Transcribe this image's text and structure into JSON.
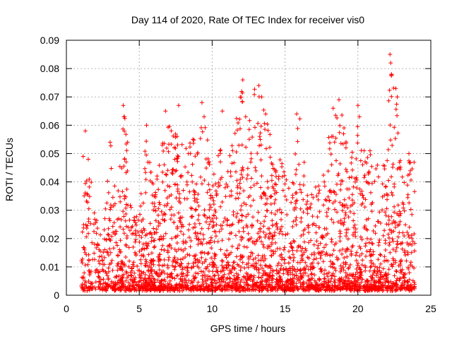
{
  "chart_data": {
    "type": "scatter",
    "title": "Day 114 of 2020, Rate Of TEC Index for receiver vis0",
    "xlabel": "GPS time / hours",
    "ylabel": "ROTI / TECUs",
    "xlim": [
      0,
      25
    ],
    "ylim": [
      0,
      0.09
    ],
    "xticks": [
      "0",
      "5",
      "10",
      "15",
      "20",
      "25"
    ],
    "yticks": [
      "0",
      "0.01",
      "0.02",
      "0.03",
      "0.04",
      "0.05",
      "0.06",
      "0.07",
      "0.08",
      "0.09"
    ],
    "xtick_values": [
      0,
      5,
      10,
      15,
      20,
      25
    ],
    "ytick_values": [
      0,
      0.01,
      0.02,
      0.03,
      0.04,
      0.05,
      0.06,
      0.07,
      0.08,
      0.09
    ],
    "grid": true,
    "marker": "+",
    "color": "#ff0000",
    "data_extent": {
      "x_start": 1.0,
      "x_end": 23.9
    },
    "notable_points": [
      {
        "x": 1.15,
        "y": 0.049
      },
      {
        "x": 1.3,
        "y": 0.058
      },
      {
        "x": 1.5,
        "y": 0.048
      },
      {
        "x": 3.0,
        "y": 0.054
      },
      {
        "x": 3.9,
        "y": 0.067
      },
      {
        "x": 3.95,
        "y": 0.063
      },
      {
        "x": 4.2,
        "y": 0.054
      },
      {
        "x": 5.5,
        "y": 0.06
      },
      {
        "x": 6.8,
        "y": 0.065
      },
      {
        "x": 7.7,
        "y": 0.067
      },
      {
        "x": 9.3,
        "y": 0.068
      },
      {
        "x": 10.7,
        "y": 0.065
      },
      {
        "x": 12.1,
        "y": 0.076
      },
      {
        "x": 12.3,
        "y": 0.063
      },
      {
        "x": 13.2,
        "y": 0.074
      },
      {
        "x": 13.4,
        "y": 0.07
      },
      {
        "x": 15.8,
        "y": 0.064
      },
      {
        "x": 18.3,
        "y": 0.066
      },
      {
        "x": 18.7,
        "y": 0.069
      },
      {
        "x": 20.0,
        "y": 0.067
      },
      {
        "x": 20.1,
        "y": 0.063
      },
      {
        "x": 22.2,
        "y": 0.085
      },
      {
        "x": 22.25,
        "y": 0.082
      },
      {
        "x": 22.3,
        "y": 0.078
      },
      {
        "x": 22.6,
        "y": 0.073
      },
      {
        "x": 22.7,
        "y": 0.07
      },
      {
        "x": 23.5,
        "y": 0.05
      }
    ],
    "envelope": [
      {
        "x": 1.0,
        "y": 0.027
      },
      {
        "x": 1.5,
        "y": 0.048
      },
      {
        "x": 2.0,
        "y": 0.03
      },
      {
        "x": 2.5,
        "y": 0.018
      },
      {
        "x": 3.0,
        "y": 0.054
      },
      {
        "x": 3.5,
        "y": 0.035
      },
      {
        "x": 4.0,
        "y": 0.067
      },
      {
        "x": 4.5,
        "y": 0.033
      },
      {
        "x": 5.0,
        "y": 0.03
      },
      {
        "x": 5.5,
        "y": 0.06
      },
      {
        "x": 6.0,
        "y": 0.04
      },
      {
        "x": 6.5,
        "y": 0.052
      },
      {
        "x": 7.0,
        "y": 0.065
      },
      {
        "x": 7.5,
        "y": 0.058
      },
      {
        "x": 8.0,
        "y": 0.055
      },
      {
        "x": 8.5,
        "y": 0.06
      },
      {
        "x": 9.0,
        "y": 0.05
      },
      {
        "x": 9.5,
        "y": 0.068
      },
      {
        "x": 10.0,
        "y": 0.04
      },
      {
        "x": 10.5,
        "y": 0.052
      },
      {
        "x": 11.0,
        "y": 0.045
      },
      {
        "x": 11.5,
        "y": 0.058
      },
      {
        "x": 12.0,
        "y": 0.076
      },
      {
        "x": 12.5,
        "y": 0.063
      },
      {
        "x": 13.0,
        "y": 0.074
      },
      {
        "x": 13.5,
        "y": 0.07
      },
      {
        "x": 14.0,
        "y": 0.058
      },
      {
        "x": 14.5,
        "y": 0.05
      },
      {
        "x": 15.0,
        "y": 0.045
      },
      {
        "x": 15.5,
        "y": 0.048
      },
      {
        "x": 16.0,
        "y": 0.064
      },
      {
        "x": 16.5,
        "y": 0.04
      },
      {
        "x": 17.0,
        "y": 0.038
      },
      {
        "x": 17.5,
        "y": 0.04
      },
      {
        "x": 18.0,
        "y": 0.055
      },
      {
        "x": 18.5,
        "y": 0.066
      },
      {
        "x": 18.8,
        "y": 0.069
      },
      {
        "x": 19.3,
        "y": 0.05
      },
      {
        "x": 19.8,
        "y": 0.052
      },
      {
        "x": 20.1,
        "y": 0.067
      },
      {
        "x": 20.5,
        "y": 0.05
      },
      {
        "x": 21.0,
        "y": 0.055
      },
      {
        "x": 21.5,
        "y": 0.044
      },
      {
        "x": 22.0,
        "y": 0.055
      },
      {
        "x": 22.25,
        "y": 0.085
      },
      {
        "x": 22.6,
        "y": 0.073
      },
      {
        "x": 23.0,
        "y": 0.042
      },
      {
        "x": 23.5,
        "y": 0.05
      },
      {
        "x": 23.9,
        "y": 0.048
      }
    ],
    "density_profile": [
      {
        "x": 1.0,
        "weight": 0.5
      },
      {
        "x": 2.0,
        "weight": 0.4
      },
      {
        "x": 3.0,
        "weight": 0.9
      },
      {
        "x": 4.0,
        "weight": 0.9
      },
      {
        "x": 5.0,
        "weight": 0.7
      },
      {
        "x": 6.0,
        "weight": 1.0
      },
      {
        "x": 7.0,
        "weight": 1.0
      },
      {
        "x": 8.0,
        "weight": 1.0
      },
      {
        "x": 9.0,
        "weight": 1.0
      },
      {
        "x": 10.0,
        "weight": 0.9
      },
      {
        "x": 11.0,
        "weight": 0.9
      },
      {
        "x": 12.0,
        "weight": 1.0
      },
      {
        "x": 13.0,
        "weight": 1.0
      },
      {
        "x": 14.0,
        "weight": 1.0
      },
      {
        "x": 15.0,
        "weight": 1.0
      },
      {
        "x": 16.0,
        "weight": 0.9
      },
      {
        "x": 17.0,
        "weight": 0.8
      },
      {
        "x": 18.0,
        "weight": 1.0
      },
      {
        "x": 19.0,
        "weight": 1.0
      },
      {
        "x": 20.0,
        "weight": 1.0
      },
      {
        "x": 21.0,
        "weight": 0.9
      },
      {
        "x": 22.0,
        "weight": 0.8
      },
      {
        "x": 23.0,
        "weight": 0.9
      },
      {
        "x": 23.9,
        "weight": 0.7
      }
    ],
    "point_count": 6000
  }
}
